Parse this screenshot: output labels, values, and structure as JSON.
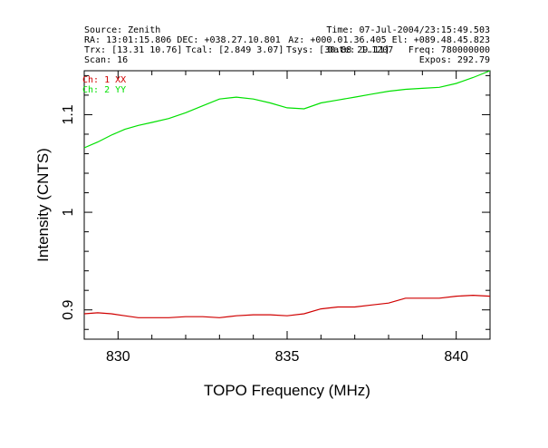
{
  "header": {
    "source": "Source: Zenith",
    "time": "Time: 07-Jul-2004/23:15:49.503",
    "ra_dec": "RA: 13:01:15.806 DEC: +038.27.10.801",
    "az_el": "Az: +000.01.36.405 El: +089.48.45.823",
    "trx": "Trx: [13.31 10.76]",
    "tcal": "Tcal: [2.849 3.07]",
    "tsys": "Tsys: [30.88 29.11]",
    "freq": "Freq: 780000000",
    "overlap": "Date: 1.1207",
    "scan": "Scan: 16",
    "expos": "Expos: 292.79"
  },
  "chart_data": {
    "type": "line",
    "xlabel": "TOPO Frequency (MHz)",
    "ylabel": "Intensity (CNTS)",
    "xlim": [
      829,
      841
    ],
    "ylim": [
      0.87,
      1.145
    ],
    "x_ticks": [
      830,
      835,
      840
    ],
    "y_ticks": [
      0.9,
      1,
      1.1
    ],
    "y_tick_labels": [
      "0.9",
      "1",
      "1.1"
    ],
    "legend_position": "top-left",
    "series": [
      {
        "name": "Ch: 1 XX",
        "color": "#d00000",
        "x": [
          829.0,
          829.4,
          829.8,
          830.2,
          830.6,
          831.0,
          831.5,
          832.0,
          832.5,
          833.0,
          833.5,
          834.0,
          834.5,
          835.0,
          835.5,
          836.0,
          836.5,
          837.0,
          837.5,
          838.0,
          838.5,
          839.0,
          839.5,
          840.0,
          840.5,
          841.0
        ],
        "values": [
          0.896,
          0.897,
          0.896,
          0.894,
          0.892,
          0.892,
          0.892,
          0.893,
          0.893,
          0.892,
          0.894,
          0.895,
          0.895,
          0.894,
          0.896,
          0.901,
          0.903,
          0.903,
          0.905,
          0.907,
          0.912,
          0.912,
          0.912,
          0.914,
          0.915,
          0.914
        ]
      },
      {
        "name": "Ch: 2 YY",
        "color": "#00e000",
        "x": [
          829.0,
          829.4,
          829.8,
          830.2,
          830.6,
          831.0,
          831.5,
          832.0,
          832.5,
          833.0,
          833.5,
          834.0,
          834.5,
          835.0,
          835.5,
          836.0,
          836.5,
          837.0,
          837.5,
          838.0,
          838.5,
          839.0,
          839.5,
          840.0,
          840.5,
          841.0
        ],
        "values": [
          1.066,
          1.072,
          1.079,
          1.085,
          1.089,
          1.092,
          1.096,
          1.102,
          1.109,
          1.116,
          1.118,
          1.116,
          1.112,
          1.107,
          1.106,
          1.112,
          1.115,
          1.118,
          1.121,
          1.124,
          1.126,
          1.127,
          1.128,
          1.132,
          1.138,
          1.145
        ]
      }
    ]
  }
}
